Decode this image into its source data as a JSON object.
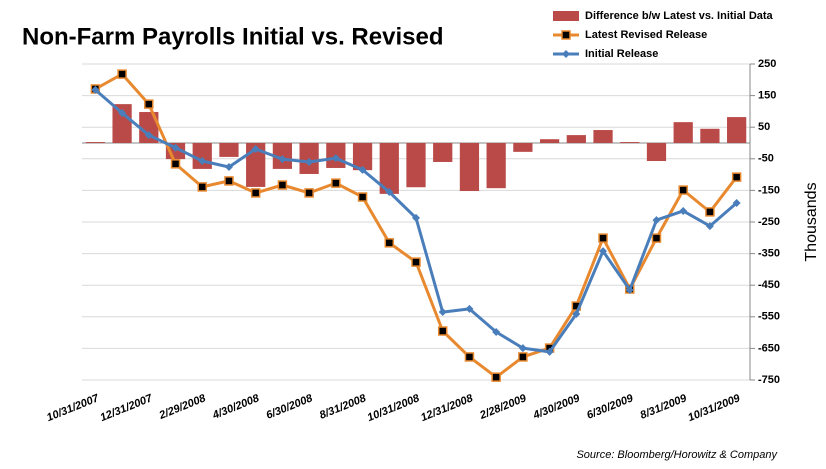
{
  "chart_data": {
    "type": "combo",
    "title": "Non-Farm Payrolls Initial vs. Revised",
    "y_axis_label": "Thousands",
    "source": "Source: Bloomberg/Horowitz & Company",
    "categories": [
      "10/31/2007",
      null,
      "12/31/2007",
      null,
      "2/29/2008",
      null,
      "4/30/2008",
      null,
      "6/30/2008",
      null,
      "8/31/2008",
      null,
      "10/31/2008",
      null,
      "12/31/2008",
      null,
      "2/28/2009",
      null,
      "4/30/2009",
      null,
      "6/30/2009",
      null,
      "8/31/2009",
      null,
      "10/31/2009"
    ],
    "series": [
      {
        "name": "Difference b/w Latest vs. Initial Data",
        "type": "bar",
        "color": "#b94a48",
        "values": [
          3,
          123,
          98,
          -51,
          -82,
          -44,
          -139,
          -82,
          -98,
          -79,
          -86,
          -161,
          -140,
          -60,
          -152,
          -143,
          -28,
          12,
          25,
          41,
          3,
          -57,
          66,
          45,
          82
        ]
      },
      {
        "name": "Latest Revised Release",
        "type": "line",
        "color": "#e8892f",
        "marker": "square",
        "values": [
          171,
          218,
          123,
          -66,
          -139,
          -120,
          -158,
          -133,
          -158,
          -127,
          -171,
          -316,
          -377,
          -595,
          -677,
          -741,
          -677,
          -649,
          -516,
          -301,
          -462,
          -301,
          -149,
          -218,
          -108
        ]
      },
      {
        "name": "Initial Release",
        "type": "line",
        "color": "#4a7ebb",
        "marker": "diamond",
        "values": [
          168,
          95,
          25,
          -15,
          -57,
          -76,
          -19,
          -51,
          -60,
          -48,
          -85,
          -155,
          -237,
          -535,
          -525,
          -598,
          -649,
          -661,
          -541,
          -342,
          -465,
          -244,
          -215,
          -263,
          -190
        ]
      }
    ],
    "ylim": [
      250,
      -750
    ],
    "yticks": [
      250,
      150,
      50,
      -50,
      -150,
      -250,
      -350,
      -450,
      -550,
      -650,
      -750
    ],
    "grid": true
  }
}
